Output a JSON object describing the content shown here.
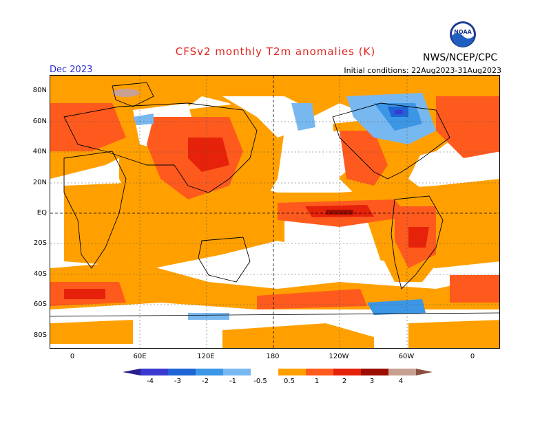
{
  "header": {
    "title": "CFSv2 monthly T2m anomalies (K)",
    "month": "Dec 2023",
    "initial_conditions": "Initial conditions: 22Aug2023-31Aug2023",
    "agency": "NWS/NCEP/CPC",
    "logo_text": "NOAA"
  },
  "axes": {
    "lat_labels": [
      "80N",
      "60N",
      "40N",
      "20N",
      "EQ",
      "20S",
      "40S",
      "60S",
      "80S"
    ],
    "lon_labels": [
      "0",
      "60E",
      "120E",
      "180",
      "120W",
      "60W",
      "0"
    ]
  },
  "colorbar": {
    "labels": [
      "-4",
      "-3",
      "-2",
      "-1",
      "-0.5",
      "0.5",
      "1",
      "2",
      "3",
      "4"
    ],
    "colors": {
      "lt_-4": "#2c1e8c",
      "-4_-3": "#3a3ad0",
      "-3_-2": "#1e64d4",
      "-2_-1": "#3c96e6",
      "-1_-0.5": "#78b8f0",
      "-0.5_0.5": "#ffffff",
      "0.5_1": "#ffa000",
      "1_2": "#ff5a1e",
      "2_3": "#e6220a",
      "3_4": "#9c0d00",
      "gt_4": "#c8a092"
    }
  }
}
